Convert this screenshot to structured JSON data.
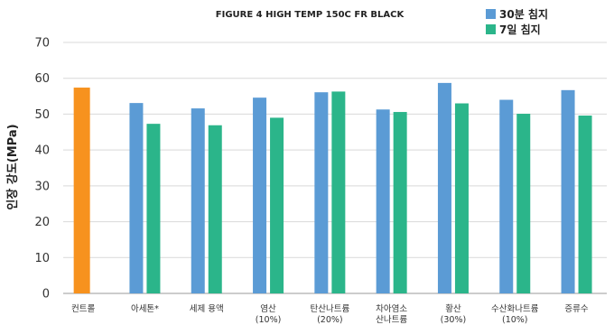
{
  "chart_data": {
    "type": "bar",
    "title": "FIGURE 4 HIGH TEMP 150C FR BLACK",
    "xlabel": "",
    "ylabel": "인장 강도(MPa)",
    "ylim": [
      0,
      70
    ],
    "yticks": [
      0,
      10,
      20,
      30,
      40,
      50,
      60,
      70
    ],
    "grid": true,
    "legend_position": "top-right",
    "categories": [
      [
        "컨트롤"
      ],
      [
        "아세톤*"
      ],
      [
        "세제 용액"
      ],
      [
        "염산",
        "(10%)"
      ],
      [
        "탄산나트륨",
        "(20%)"
      ],
      [
        "차아염소",
        "산나트륨"
      ],
      [
        "황산",
        "(30%)"
      ],
      [
        "수산화나트륨",
        "(10%)"
      ],
      [
        "증류수"
      ]
    ],
    "control": {
      "value": 57.4,
      "color": "#f7921e"
    },
    "series": [
      {
        "name": "30분 침지",
        "color": "#5b9bd5",
        "values": [
          null,
          53.1,
          51.6,
          54.6,
          56.1,
          51.3,
          58.7,
          54.0,
          56.7
        ]
      },
      {
        "name": "7일 침지",
        "color": "#2bb58a",
        "values": [
          null,
          47.3,
          46.9,
          49.0,
          56.3,
          50.6,
          53.0,
          50.1,
          49.6
        ]
      }
    ]
  }
}
